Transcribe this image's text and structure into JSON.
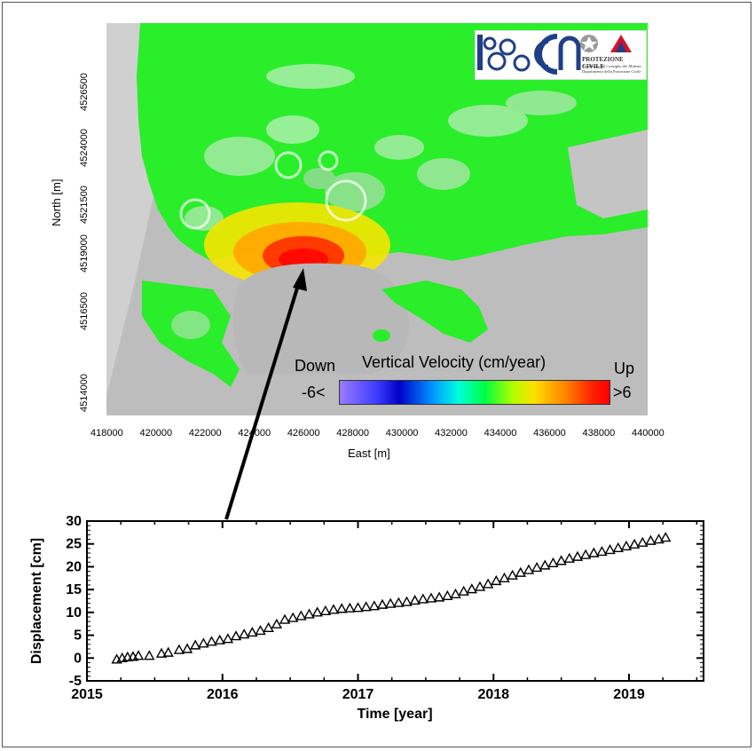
{
  "colors": {
    "map_background": "#b9b9b9",
    "low_velocity": "#22ee22",
    "mid_velocity": "#ffcc00",
    "high_velocity": "#ff1a00",
    "arrow": "#000000"
  },
  "logo": {
    "agency_line1": "PROTEZIONE CIVILE",
    "agency_line2": "Presidenza del Consiglio dei Ministri",
    "agency_line3": "Dipartimento della Protezione Civile",
    "icons": [
      "irea-logo-icon",
      "cnr-logo-icon",
      "italian-emblem-icon",
      "protezione-civile-logo-icon"
    ]
  },
  "colorbar": {
    "label_down": "Down",
    "label_title": "Vertical Velocity (cm/year)",
    "label_up": "Up",
    "label_min": "-6<",
    "label_max": ">6"
  },
  "map_axes": {
    "xlabel": "East [m]",
    "ylabel": "North [m]",
    "x_ticks": [
      "418000",
      "420000",
      "422000",
      "424000",
      "426000",
      "428000",
      "430000",
      "432000",
      "434000",
      "436000",
      "438000",
      "440000"
    ],
    "y_ticks": [
      "4526500",
      "4524000",
      "4521500",
      "4519000",
      "4516500",
      "4514000"
    ]
  },
  "chart_data": {
    "type": "scatter",
    "xlabel": "Time [year]",
    "ylabel": "Displacement [cm]",
    "xlim": [
      2015,
      2019.55
    ],
    "ylim": [
      -5,
      30
    ],
    "x_ticks": [
      "2015",
      "2016",
      "2017",
      "2018",
      "2019"
    ],
    "y_ticks": [
      "-5",
      "0",
      "5",
      "10",
      "15",
      "20",
      "25",
      "30"
    ],
    "marker": "triangle",
    "series": [
      {
        "x": [
          2015.22,
          2015.26,
          2015.3,
          2015.34,
          2015.38,
          2015.46,
          2015.55,
          2015.6,
          2015.68,
          2015.74,
          2015.8,
          2015.86,
          2015.92,
          2015.98,
          2016.04,
          2016.1,
          2016.16,
          2016.22,
          2016.28,
          2016.34,
          2016.4,
          2016.46,
          2016.52,
          2016.58,
          2016.64,
          2016.7,
          2016.76,
          2016.82,
          2016.88,
          2016.94,
          2017.0,
          2017.06,
          2017.12,
          2017.18,
          2017.24,
          2017.3,
          2017.36,
          2017.42,
          2017.48,
          2017.54,
          2017.6,
          2017.66,
          2017.72,
          2017.78,
          2017.84,
          2017.9,
          2017.96,
          2018.02,
          2018.08,
          2018.14,
          2018.2,
          2018.26,
          2018.32,
          2018.38,
          2018.44,
          2018.5,
          2018.56,
          2018.62,
          2018.68,
          2018.74,
          2018.8,
          2018.86,
          2018.92,
          2018.98,
          2019.04,
          2019.1,
          2019.16,
          2019.22,
          2019.27
        ],
        "y": [
          -0.3,
          0.0,
          0.2,
          0.3,
          0.5,
          0.5,
          1.0,
          1.2,
          1.8,
          2.0,
          2.8,
          3.2,
          3.6,
          3.9,
          4.2,
          4.8,
          5.2,
          5.6,
          6.0,
          6.6,
          7.4,
          8.4,
          8.8,
          9.2,
          9.6,
          10.0,
          10.3,
          10.6,
          10.8,
          10.9,
          11.0,
          11.2,
          11.4,
          11.7,
          11.9,
          12.1,
          12.3,
          12.6,
          12.9,
          13.1,
          13.3,
          13.6,
          14.0,
          14.6,
          15.1,
          15.6,
          16.2,
          16.9,
          17.5,
          18.1,
          18.7,
          19.3,
          19.8,
          20.3,
          20.8,
          21.3,
          21.8,
          22.2,
          22.6,
          23.0,
          23.3,
          23.7,
          24.1,
          24.5,
          24.9,
          25.3,
          25.7,
          26.0,
          26.4
        ]
      }
    ]
  }
}
